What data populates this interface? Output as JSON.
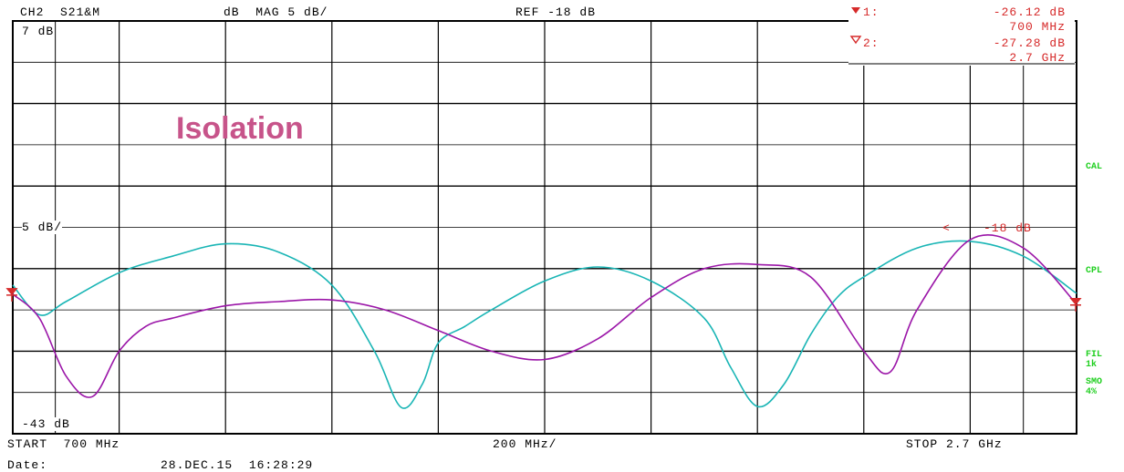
{
  "header": {
    "channel": "CH2  S21&M",
    "format": "dB  MAG 5 dB/",
    "ref": "REF -18 dB"
  },
  "markers": [
    {
      "label": "1:",
      "value": "-26.12 dB",
      "freq": "700 MHz"
    },
    {
      "label": "2:",
      "value": "-27.28 dB",
      "freq": "2.7 GHz"
    }
  ],
  "side_labels": {
    "cal": "CAL",
    "cpl": "CPL",
    "fil": "FIL",
    "fil_val": "1k",
    "smo": "SMO",
    "smo_val": "4%"
  },
  "footer": {
    "start": "START  700 MHz",
    "span": "200 MHz/",
    "stop": "STOP 2.7 GHz",
    "date_label": "Date:",
    "date_value": "28.DEC.15  16:28:29"
  },
  "annotation": "Isolation",
  "colors": {
    "trace_teal": "#19b5b5",
    "trace_purple": "#9b16a8",
    "marker_red": "#d62a2a",
    "label_green": "#1fcf1f",
    "title_pink": "#c7548a"
  },
  "chart_data": {
    "type": "line",
    "title": "Isolation",
    "x_unit": "MHz",
    "xlim": [
      700,
      2700
    ],
    "ylim": [
      -43,
      7
    ],
    "y_top_label": "7 dB",
    "y_mid_label": "5 dB/",
    "y_bottom_label": "-43 dB",
    "ref_label": "-18 dB",
    "grid": true,
    "series": [
      {
        "color": "#19b5b5",
        "x": [
          700,
          750,
          800,
          900,
          1000,
          1100,
          1200,
          1300,
          1380,
          1430,
          1470,
          1500,
          1550,
          1600,
          1700,
          1800,
          1900,
          2000,
          2050,
          2100,
          2150,
          2200,
          2250,
          2300,
          2400,
          2500,
          2600,
          2700
        ],
        "y": [
          -25,
          -28.6,
          -27,
          -23.5,
          -21.5,
          -20,
          -21,
          -25,
          -33,
          -39.8,
          -37,
          -32,
          -30,
          -28,
          -24.5,
          -22.8,
          -24.5,
          -29,
          -35,
          -39.7,
          -37,
          -31,
          -26.5,
          -24,
          -20.5,
          -19.7,
          -21.5,
          -26
        ]
      },
      {
        "color": "#9b16a8",
        "x": [
          700,
          750,
          800,
          850,
          900,
          950,
          1000,
          1100,
          1200,
          1300,
          1400,
          1500,
          1600,
          1700,
          1800,
          1900,
          2000,
          2100,
          2200,
          2300,
          2350,
          2400,
          2500,
          2600,
          2700
        ],
        "y": [
          -26.1,
          -29,
          -36,
          -38.5,
          -33,
          -30,
          -29,
          -27.5,
          -27,
          -26.8,
          -28,
          -30.5,
          -33,
          -34,
          -31.5,
          -26.5,
          -23,
          -22.5,
          -24,
          -33,
          -35.5,
          -28,
          -19.5,
          -20.5,
          -27.3
        ]
      }
    ]
  }
}
